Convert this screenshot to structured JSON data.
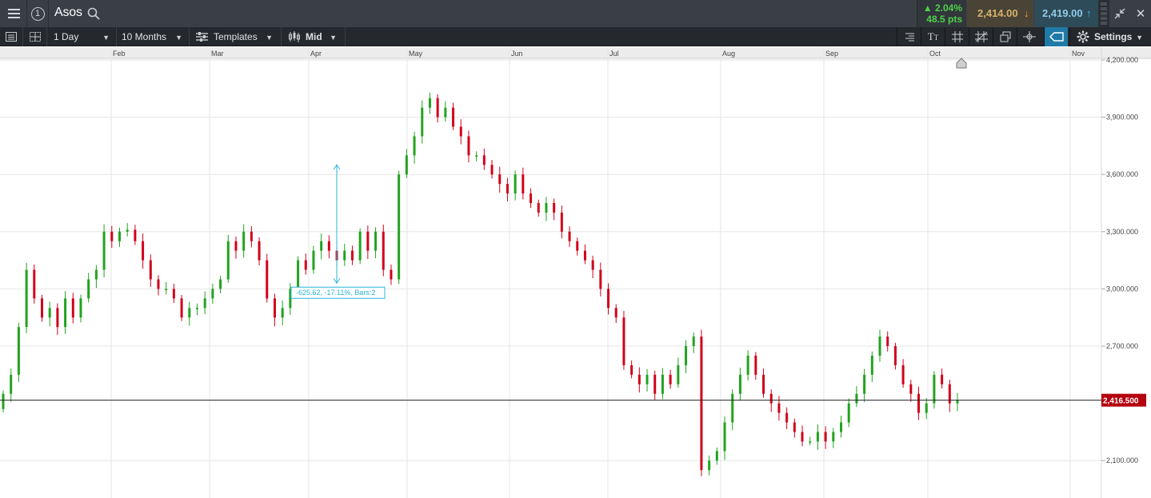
{
  "header": {
    "instrument": "Asos",
    "change_pct": "▲ 2.04%",
    "change_pts": "48.5 pts",
    "sell_price": "2,414.00",
    "buy_price": "2,419.00",
    "colors": {
      "up": "#4fd14a",
      "sell": "#d7b26b",
      "buy": "#8fcbe6"
    }
  },
  "toolbar": {
    "interval": "1 Day",
    "range": "10 Months",
    "templates": "Templates",
    "price_type": "Mid",
    "settings": "Settings"
  },
  "chart_data": {
    "type": "candlestick",
    "x_labels": [
      "Feb",
      "Mar",
      "Apr",
      "May",
      "Jun",
      "Jul",
      "Aug",
      "Sep",
      "Oct",
      "Nov"
    ],
    "y_ticks": [
      "4,200.000",
      "3,900.000",
      "3,600.000",
      "3,300.000",
      "3,000.000",
      "2,700.000",
      "2,100.000"
    ],
    "y_range": [
      1900,
      4210
    ],
    "current_price": 2416.5,
    "current_price_label": "2,416.500",
    "measure_label": "-625.62, -17.11%, Bars:2",
    "up_color": "#22a31f",
    "down_color": "#d0021b",
    "closes": [
      2450,
      2550,
      2800,
      3100,
      2950,
      2850,
      2900,
      2800,
      2950,
      2850,
      2950,
      3050,
      3100,
      3300,
      3250,
      3300,
      3310,
      3250,
      3150,
      3050,
      3000,
      3000,
      2950,
      2850,
      2900,
      2900,
      2950,
      3000,
      3050,
      3250,
      3200,
      3300,
      3250,
      3150,
      2950,
      2850,
      2900,
      3000,
      3150,
      3100,
      3200,
      3250,
      3200,
      3150,
      3200,
      3150,
      3300,
      3200,
      3300,
      3100,
      3050,
      3600,
      3700,
      3800,
      3950,
      4000,
      3900,
      3950,
      3850,
      3800,
      3700,
      3700,
      3650,
      3600,
      3550,
      3500,
      3600,
      3500,
      3450,
      3400,
      3450,
      3400,
      3300,
      3250,
      3200,
      3150,
      3100,
      3000,
      2900,
      2850,
      2600,
      2550,
      2500,
      2550,
      2450,
      2550,
      2500,
      2600,
      2700,
      2750,
      2050,
      2100,
      2150,
      2300,
      2450,
      2550,
      2650,
      2550,
      2450,
      2400,
      2350,
      2300,
      2250,
      2200,
      2200,
      2250,
      2200,
      2250,
      2300,
      2400,
      2450,
      2550,
      2650,
      2750,
      2700,
      2600,
      2500,
      2450,
      2350,
      2400,
      2550,
      2500,
      2400,
      2416
    ]
  },
  "annotation": {
    "marker_label": ""
  }
}
